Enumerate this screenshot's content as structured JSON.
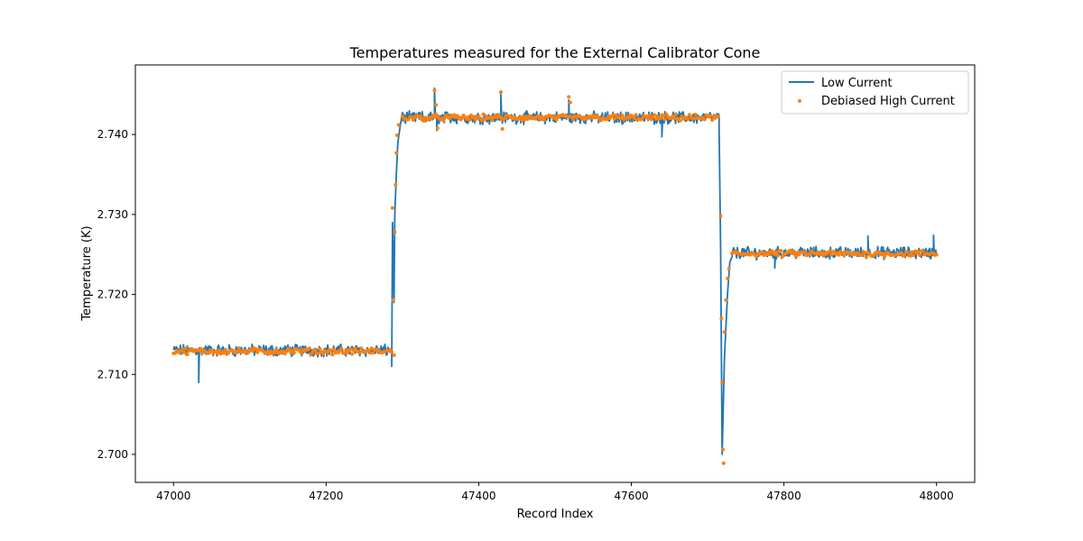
{
  "chart_data": {
    "type": "line",
    "title": "Temperatures measured for the External Calibrator Cone",
    "xlabel": "Record Index",
    "ylabel": "Temperature (K)",
    "xlim": [
      46950,
      48050
    ],
    "ylim": [
      2.6965,
      2.7487
    ],
    "x_ticks": [
      47000,
      47200,
      47400,
      47600,
      47800,
      48000
    ],
    "x_tick_labels": [
      "47000",
      "47200",
      "47400",
      "47600",
      "47800",
      "48000"
    ],
    "y_ticks": [
      2.7,
      2.71,
      2.72,
      2.73,
      2.74
    ],
    "y_tick_labels": [
      "2.700",
      "2.710",
      "2.720",
      "2.730",
      "2.740"
    ],
    "grid": false,
    "legend_position": "top-right",
    "colors": {
      "low": "#1f77b4",
      "high": "#ff7f0e"
    },
    "series": [
      {
        "name": "Low Current",
        "style": "line",
        "segments": [
          {
            "x_start": 47000,
            "x_end": 47286,
            "level": 2.713,
            "noise": 0.0006
          },
          {
            "x_start": 47300,
            "x_end": 47715,
            "level": 2.7421,
            "noise": 0.0006
          },
          {
            "x_start": 47732,
            "x_end": 48000,
            "level": 2.7252,
            "noise": 0.0006
          }
        ],
        "points": [
          [
            47033,
            2.709
          ],
          [
            47286,
            2.711
          ],
          [
            47287,
            2.729
          ],
          [
            47289,
            2.719
          ],
          [
            47290,
            2.73
          ],
          [
            47292,
            2.735
          ],
          [
            47294,
            2.739
          ],
          [
            47297,
            2.741
          ],
          [
            47300,
            2.742
          ],
          [
            47342,
            2.7458
          ],
          [
            47345,
            2.7405
          ],
          [
            47429,
            2.745
          ],
          [
            47518,
            2.7443
          ],
          [
            47640,
            2.7397
          ],
          [
            47715,
            2.741
          ],
          [
            47717,
            2.726
          ],
          [
            47719,
            2.7
          ],
          [
            47722,
            2.712
          ],
          [
            47726,
            2.72
          ],
          [
            47729,
            2.724
          ],
          [
            47732,
            2.725
          ],
          [
            47788,
            2.7233
          ],
          [
            47910,
            2.7273
          ],
          [
            47996,
            2.7274
          ],
          [
            48000,
            2.725
          ]
        ]
      },
      {
        "name": "Debiased High Current",
        "style": "scatter",
        "segments": [
          {
            "x_start": 47000,
            "x_end": 47286,
            "level": 2.7129,
            "noise": 0.0003
          },
          {
            "x_start": 47300,
            "x_end": 47715,
            "level": 2.7421,
            "noise": 0.0003
          },
          {
            "x_start": 47732,
            "x_end": 48000,
            "level": 2.7251,
            "noise": 0.0003
          }
        ],
        "points": [
          [
            47287,
            2.7308
          ],
          [
            47288,
            2.7193
          ],
          [
            47289,
            2.7124
          ],
          [
            47290,
            2.7278
          ],
          [
            47291,
            2.7337
          ],
          [
            47292,
            2.7377
          ],
          [
            47293,
            2.7399
          ],
          [
            47295,
            2.7412
          ],
          [
            47342,
            2.7455
          ],
          [
            47344,
            2.7437
          ],
          [
            47346,
            2.7408
          ],
          [
            47429,
            2.7453
          ],
          [
            47431,
            2.7407
          ],
          [
            47518,
            2.7447
          ],
          [
            47520,
            2.744
          ],
          [
            47717,
            2.7298
          ],
          [
            47718,
            2.717
          ],
          [
            47719,
            2.709
          ],
          [
            47720,
            2.7006
          ],
          [
            47721,
            2.6989
          ],
          [
            47722,
            2.7153
          ],
          [
            47724,
            2.7193
          ],
          [
            47726,
            2.722
          ],
          [
            47728,
            2.7232
          ]
        ]
      }
    ]
  }
}
